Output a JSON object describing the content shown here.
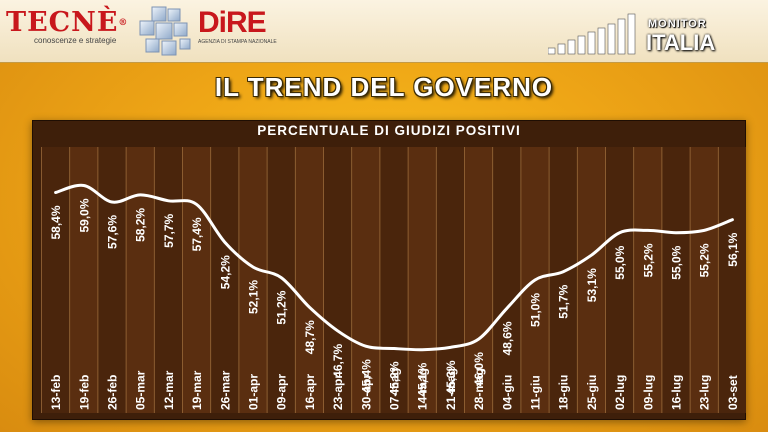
{
  "header": {
    "tecne": {
      "name": "TECNÈ",
      "reg": "®",
      "tagline": "conoscenze e strategie"
    },
    "dire": {
      "name": "DiRE",
      "tagline": "AGENZIA DI STAMPA NAZIONALE"
    },
    "monitor": {
      "line1": "MONITOR",
      "line2": "ITALIA"
    }
  },
  "title": "IL TREND DEL GOVERNO",
  "colors": {
    "background": "#eea516",
    "panel": "#3e1f0a",
    "line": "#ffffff",
    "text": "#ffffff",
    "brand_red": "#c8171c"
  },
  "chart_data": {
    "type": "line",
    "title": "PERCENTUALE DI GIUDIZI POSITIVI",
    "categories": [
      "13-feb",
      "19-feb",
      "26-feb",
      "05-mar",
      "12-mar",
      "19-mar",
      "26-mar",
      "01-apr",
      "09-apr",
      "16-apr",
      "23-apr",
      "30-apr",
      "07-mag",
      "14-mag",
      "21-mag",
      "28-mag",
      "04-giu",
      "11-giu",
      "18-giu",
      "25-giu",
      "02-lug",
      "09-lug",
      "16-lug",
      "23-lug",
      "03-set"
    ],
    "series": [
      {
        "values": [
          58.4,
          59.0,
          57.6,
          58.2,
          57.7,
          57.4,
          54.2,
          52.1,
          51.2,
          48.7,
          46.7,
          45.4,
          45.2,
          45.1,
          45.3,
          46.0,
          48.6,
          51.0,
          51.7,
          53.1,
          55.0,
          55.2,
          55.0,
          55.2,
          56.1
        ]
      }
    ],
    "value_labels": [
      "58,4%",
      "59,0%",
      "57,6%",
      "58,2%",
      "57,7%",
      "57,4%",
      "54,2%",
      "52,1%",
      "51,2%",
      "48,7%",
      "46,7%",
      "45,4%",
      "45,2%",
      "45,1%",
      "45,3%",
      "46,0%",
      "48,6%",
      "51,0%",
      "51,7%",
      "53,1%",
      "55,0%",
      "55,2%",
      "55,0%",
      "55,2%",
      "56,1%"
    ],
    "ylim": [
      40,
      62
    ],
    "grid": "vertical",
    "legend": "none"
  }
}
